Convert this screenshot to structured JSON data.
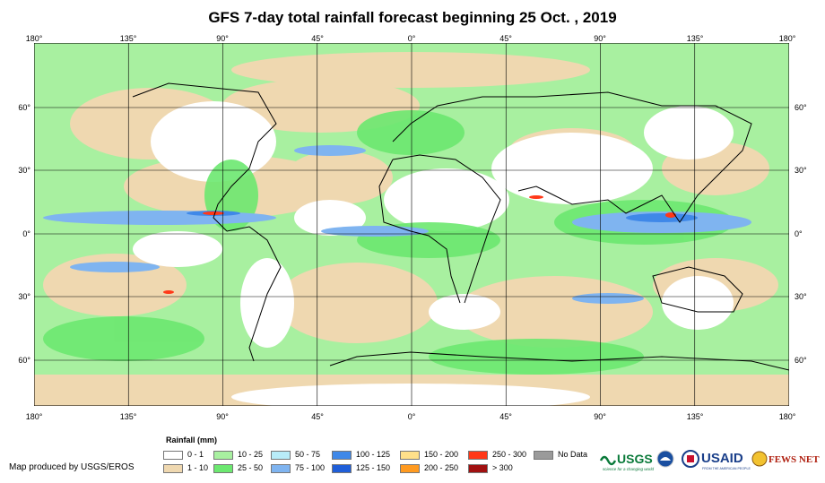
{
  "title": "GFS 7-day total rainfall forecast beginning 25 Oct. , 2019",
  "map": {
    "lon_labels": [
      "180°",
      "135°",
      "90°",
      "45°",
      "0°",
      "45°",
      "90°",
      "135°",
      "180°"
    ],
    "lat_labels": [
      "60°",
      "30°",
      "0°",
      "30°",
      "60°"
    ]
  },
  "legend": {
    "title": "Rainfall (mm)",
    "items": [
      {
        "label": "0 - 1",
        "color": "#ffffff"
      },
      {
        "label": "1 - 10",
        "color": "#efd8b0"
      },
      {
        "label": "10 - 25",
        "color": "#a8f0a0"
      },
      {
        "label": "25 - 50",
        "color": "#6ce870"
      },
      {
        "label": "50 - 75",
        "color": "#b8ecf8"
      },
      {
        "label": "75 - 100",
        "color": "#7fb4f0"
      },
      {
        "label": "100 - 125",
        "color": "#3f88e8"
      },
      {
        "label": "125 - 150",
        "color": "#1f5ed8"
      },
      {
        "label": "150 - 200",
        "color": "#ffe08a"
      },
      {
        "label": "200 - 250",
        "color": "#ff9a20"
      },
      {
        "label": "250 - 300",
        "color": "#ff3818"
      },
      {
        "label": "> 300",
        "color": "#a01010"
      },
      {
        "label": "No Data",
        "color": "#9a9a9a"
      }
    ]
  },
  "credit": "Map produced by USGS/EROS",
  "logos": {
    "usgs": "USGS",
    "usgs_tagline": "science for a changing world",
    "usaid": "USAID",
    "usaid_tagline": "FROM THE AMERICAN PEOPLE",
    "fewsnet": "FEWS NET"
  }
}
